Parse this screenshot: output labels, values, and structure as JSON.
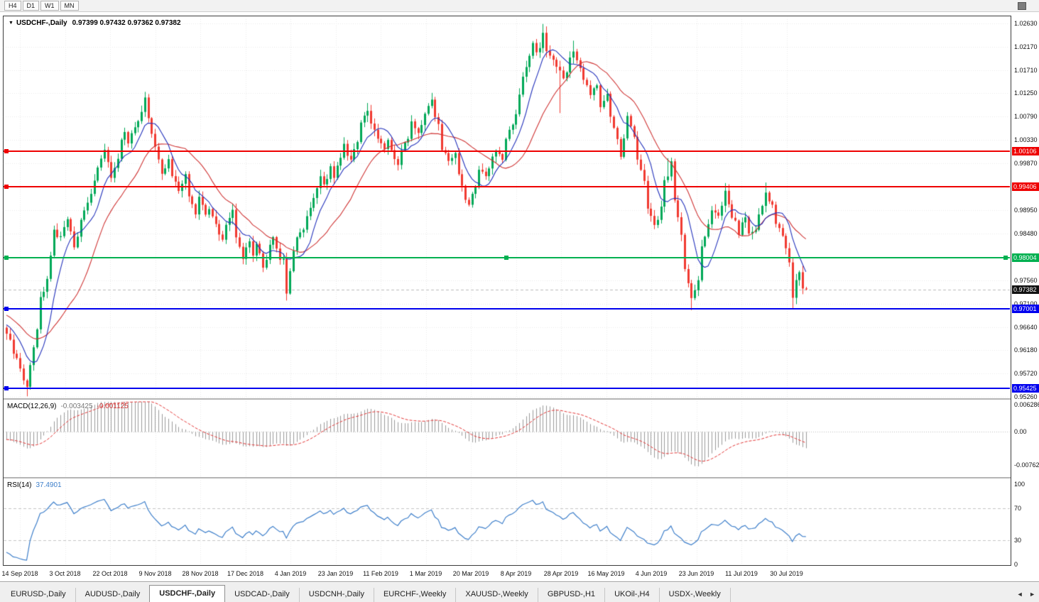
{
  "toolbar": {
    "timeframes": [
      "H4",
      "D1",
      "W1",
      "MN"
    ]
  },
  "chart": {
    "title": {
      "arrow": "▼",
      "symbol": "USDCHF-,Daily",
      "ohlc": "0.97399 0.97432 0.97362 0.97382"
    },
    "price_axis": {
      "ticks": [
        "1.02630",
        "1.02170",
        "1.01710",
        "1.01250",
        "1.00790",
        "1.00330",
        "0.99870",
        "0.98950",
        "0.98480",
        "0.97560",
        "0.97100",
        "0.96640",
        "0.96180",
        "0.95720",
        "0.95260"
      ]
    },
    "hlines": [
      {
        "price": 1.00106,
        "label": "1.00106",
        "color": "#ee0000",
        "text_color": "#ffffff",
        "handles": [
          "left"
        ]
      },
      {
        "price": 0.99406,
        "label": "0.99406",
        "color": "#ee0000",
        "text_color": "#ffffff",
        "handles": [
          "left"
        ]
      },
      {
        "price": 0.98004,
        "label": "0.98004",
        "color": "#00b050",
        "text_color": "#ffffff",
        "handles": [
          "left",
          "center",
          "right"
        ]
      },
      {
        "price": 0.97001,
        "label": "0.97001",
        "color": "#0000ee",
        "text_color": "#ffffff",
        "handles": [
          "left"
        ]
      },
      {
        "price": 0.95425,
        "label": "0.95425",
        "color": "#0000ee",
        "text_color": "#ffffff",
        "handles": [
          "left"
        ]
      }
    ],
    "bid": {
      "price": 0.97382,
      "label": "0.97382",
      "badge_bg": "#111111",
      "text_color": "#ffffff"
    }
  },
  "macd_panel": {
    "name": "MACD(12,26,9)",
    "value_main": "-0.003425",
    "value_signal": "-0.001125",
    "axis": [
      "0.006286",
      "0.00",
      "-0.00762"
    ]
  },
  "rsi_panel": {
    "name": "RSI(14)",
    "value": "37.4901",
    "axis": [
      "100",
      "70",
      "30",
      "0"
    ],
    "levels": [
      70,
      30
    ]
  },
  "tab_bar": {
    "tabs": [
      "EURUSD-,Daily",
      "AUDUSD-,Daily",
      "USDCHF-,Daily",
      "USDCAD-,Daily",
      "USDCNH-,Daily",
      "EURCHF-,Weekly",
      "XAUUSD-,Weekly",
      "GBPUSD-,H1",
      "UKOil-,H4",
      "USDX-,Weekly"
    ],
    "active_index": 2,
    "scroll_left": "◄",
    "scroll_right": "►"
  },
  "colors": {
    "candle_up": "#00a857",
    "candle_down": "#f13a30",
    "ma_fast": "#2231bb",
    "ma_slow": "#cf3434",
    "macd_hist": "#9a9a9a",
    "macd_signal": "#e23434",
    "rsi_line": "#3e7fca",
    "grid": "#e9e9e9",
    "level_dash": "#c4c4c4",
    "zero_line": "#bdbdbd",
    "bid_line": "#bbbbbb"
  },
  "chart_data": {
    "type": "candlestick",
    "symbol": "USDCHF",
    "timeframe": "Daily",
    "ohlc_current": {
      "open": 0.97399,
      "high": 0.97432,
      "low": 0.97362,
      "close": 0.97382
    },
    "ylim": [
      0.9526,
      1.0263
    ],
    "y_tick_step": 0.0046,
    "n_candles": 238,
    "prehistory": {
      "bars": 30,
      "from": 0.9755,
      "to": 0.966
    },
    "price_anchors": [
      [
        0,
        0.9655
      ],
      [
        2,
        0.9615
      ],
      [
        3,
        0.96
      ],
      [
        5,
        0.956
      ],
      [
        6,
        0.9548
      ],
      [
        7,
        0.959
      ],
      [
        9,
        0.9655
      ],
      [
        10,
        0.972
      ],
      [
        12,
        0.9758
      ],
      [
        14,
        0.985
      ],
      [
        16,
        0.9838
      ],
      [
        18,
        0.988
      ],
      [
        20,
        0.982
      ],
      [
        23,
        0.99
      ],
      [
        25,
        0.9925
      ],
      [
        27,
        0.9975
      ],
      [
        29,
        1.001
      ],
      [
        31,
        0.9962
      ],
      [
        33,
        1.0
      ],
      [
        35,
        1.0055
      ],
      [
        36,
        1.0022
      ],
      [
        38,
        1.006
      ],
      [
        40,
        1.009
      ],
      [
        41,
        1.0115
      ],
      [
        43,
        1.005
      ],
      [
        45,
        0.9992
      ],
      [
        46,
        0.9962
      ],
      [
        48,
        1.0
      ],
      [
        49,
        0.9962
      ],
      [
        51,
        0.993
      ],
      [
        53,
        0.996
      ],
      [
        54,
        0.9922
      ],
      [
        56,
        0.989
      ],
      [
        57,
        0.992
      ],
      [
        59,
        0.9882
      ],
      [
        60,
        0.99
      ],
      [
        62,
        0.9862
      ],
      [
        64,
        0.9832
      ],
      [
        65,
        0.987
      ],
      [
        67,
        0.989
      ],
      [
        68,
        0.9842
      ],
      [
        70,
        0.9802
      ],
      [
        72,
        0.983
      ],
      [
        73,
        0.9802
      ],
      [
        74,
        0.983
      ],
      [
        76,
        0.9782
      ],
      [
        78,
        0.982
      ],
      [
        79,
        0.984
      ],
      [
        81,
        0.98
      ],
      [
        82,
        0.9795
      ],
      [
        83,
        0.973
      ],
      [
        84,
        0.9775
      ],
      [
        85,
        0.981
      ],
      [
        86,
        0.984
      ],
      [
        88,
        0.9855
      ],
      [
        89,
        0.988
      ],
      [
        91,
        0.992
      ],
      [
        93,
        0.9958
      ],
      [
        94,
        0.994
      ],
      [
        96,
        0.998
      ],
      [
        97,
        0.9962
      ],
      [
        99,
        1.0
      ],
      [
        100,
        1.002
      ],
      [
        102,
        0.9992
      ],
      [
        104,
        1.003
      ],
      [
        105,
        1.0068
      ],
      [
        107,
        1.0095
      ],
      [
        108,
        1.0062
      ],
      [
        110,
        1.004
      ],
      [
        112,
        1.0012
      ],
      [
        113,
        1.0035
      ],
      [
        114,
        1.0012
      ],
      [
        116,
        0.999
      ],
      [
        117,
        1.001
      ],
      [
        119,
        1.004
      ],
      [
        120,
        1.0068
      ],
      [
        122,
        1.005
      ],
      [
        124,
        1.008
      ],
      [
        125,
        1.0098
      ],
      [
        126,
        1.0108
      ],
      [
        128,
        1.006
      ],
      [
        129,
        1.0012
      ],
      [
        131,
        0.999
      ],
      [
        133,
        1.001
      ],
      [
        134,
        0.996
      ],
      [
        136,
        0.992
      ],
      [
        137,
        0.9902
      ],
      [
        139,
        0.994
      ],
      [
        140,
        0.9978
      ],
      [
        142,
        0.996
      ],
      [
        144,
        1.0
      ],
      [
        145,
        1.0012
      ],
      [
        147,
        1.0
      ],
      [
        148,
        1.003
      ],
      [
        149,
        1.005
      ],
      [
        151,
        1.008
      ],
      [
        152,
        1.0128
      ],
      [
        154,
        1.018
      ],
      [
        156,
        1.0218
      ],
      [
        157,
        1.02
      ],
      [
        159,
        1.0238
      ],
      [
        160,
        1.0212
      ],
      [
        162,
        1.019
      ],
      [
        164,
        1.0168
      ],
      [
        165,
        1.015
      ],
      [
        167,
        1.019
      ],
      [
        168,
        1.0212
      ],
      [
        170,
        1.018
      ],
      [
        171,
        1.015
      ],
      [
        173,
        1.0122
      ],
      [
        175,
        1.014
      ],
      [
        176,
        1.0102
      ],
      [
        178,
        1.012
      ],
      [
        179,
        1.008
      ],
      [
        181,
        1.004
      ],
      [
        182,
        1.0
      ],
      [
        184,
        1.0078
      ],
      [
        186,
        1.004
      ],
      [
        187,
        1.0
      ],
      [
        189,
        0.995
      ],
      [
        190,
        0.9902
      ],
      [
        192,
        0.9862
      ],
      [
        194,
        0.99
      ],
      [
        195,
        0.9948
      ],
      [
        197,
        0.9985
      ],
      [
        198,
        0.992
      ],
      [
        200,
        0.984
      ],
      [
        201,
        0.9782
      ],
      [
        203,
        0.9722
      ],
      [
        205,
        0.976
      ],
      [
        206,
        0.982
      ],
      [
        208,
        0.9868
      ],
      [
        209,
        0.99
      ],
      [
        211,
        0.988
      ],
      [
        213,
        0.9928
      ],
      [
        214,
        0.99
      ],
      [
        216,
        0.987
      ],
      [
        217,
        0.985
      ],
      [
        219,
        0.988
      ],
      [
        220,
        0.9842
      ],
      [
        222,
        0.986
      ],
      [
        224,
        0.99
      ],
      [
        225,
        0.9928
      ],
      [
        227,
        0.99
      ],
      [
        228,
        0.987
      ],
      [
        230,
        0.984
      ],
      [
        232,
        0.9795
      ],
      [
        233,
        0.9722
      ],
      [
        234,
        0.9758
      ],
      [
        235,
        0.977
      ],
      [
        236,
        0.97399
      ],
      [
        237,
        0.97382
      ]
    ],
    "wick_overrides": [
      {
        "i": 6,
        "low": 0.9527
      },
      {
        "i": 41,
        "high": 1.0128
      },
      {
        "i": 83,
        "low": 0.9716
      },
      {
        "i": 107,
        "high": 1.0106
      },
      {
        "i": 126,
        "high": 1.0126
      },
      {
        "i": 159,
        "high": 1.0262
      },
      {
        "i": 164,
        "low": 1.0086
      },
      {
        "i": 168,
        "high": 1.0229
      },
      {
        "i": 196,
        "high": 0.9997
      },
      {
        "i": 203,
        "low": 0.9697
      },
      {
        "i": 213,
        "high": 0.9948
      },
      {
        "i": 225,
        "high": 0.9949
      },
      {
        "i": 233,
        "low": 0.97
      }
    ],
    "horizontal_levels": [
      1.00106,
      0.99406,
      0.98004,
      0.97001,
      0.95425
    ],
    "indicators": {
      "ma_fast_period": 8,
      "ma_slow_period": 20,
      "macd": {
        "fast": 12,
        "slow": 26,
        "signal": 9,
        "current": -0.003425,
        "signal_current": -0.001125,
        "range": [
          -0.00762,
          0.006286
        ]
      },
      "rsi": {
        "period": 14,
        "current": 37.4901,
        "levels": [
          30,
          70
        ],
        "range": [
          0,
          100
        ]
      }
    },
    "x_labels": [
      "14 Sep 2018",
      "3 Oct 2018",
      "22 Oct 2018",
      "9 Nov 2018",
      "28 Nov 2018",
      "17 Dec 2018",
      "4 Jan 2019",
      "23 Jan 2019",
      "11 Feb 2019",
      "1 Mar 2019",
      "20 Mar 2019",
      "8 Apr 2019",
      "28 Apr 2019",
      "16 May 2019",
      "4 Jun 2019",
      "23 Jun 2019",
      "11 Jul 2019",
      "30 Jul 2019"
    ]
  }
}
